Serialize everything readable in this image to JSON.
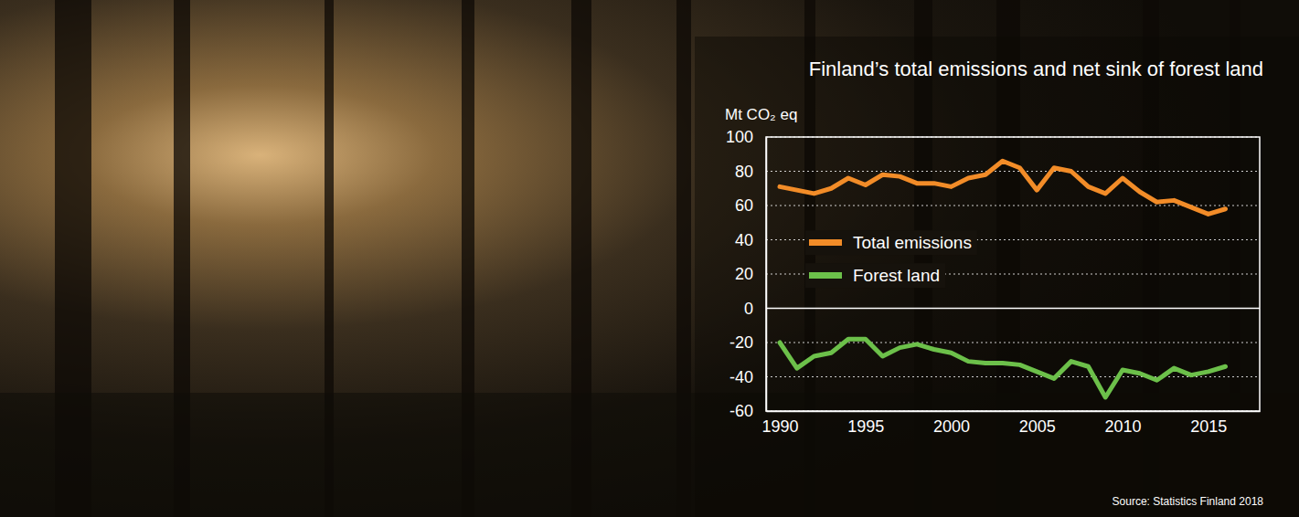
{
  "chart_data": {
    "type": "line",
    "title": "Finland’s total emissions and net sink of forest land",
    "y_label": "Mt CO₂ eq",
    "source": "Source: Statistics Finland 2018",
    "x": [
      1990,
      1991,
      1992,
      1993,
      1994,
      1995,
      1996,
      1997,
      1998,
      1999,
      2000,
      2001,
      2002,
      2003,
      2004,
      2005,
      2006,
      2007,
      2008,
      2009,
      2010,
      2011,
      2012,
      2013,
      2014,
      2015,
      2016
    ],
    "series": [
      {
        "name": "Total emissions",
        "color": "#f28c28",
        "values": [
          71,
          69,
          67,
          70,
          76,
          72,
          78,
          77,
          73,
          73,
          71,
          76,
          78,
          86,
          82,
          69,
          82,
          80,
          71,
          67,
          76,
          68,
          62,
          63,
          59,
          55,
          58
        ]
      },
      {
        "name": "Forest land",
        "color": "#6cc04a",
        "values": [
          -20,
          -35,
          -28,
          -26,
          -18,
          -18,
          -28,
          -23,
          -21,
          -24,
          -26,
          -31,
          -32,
          -32,
          -33,
          -37,
          -41,
          -31,
          -34,
          -52,
          -36,
          -38,
          -42,
          -35,
          -39,
          -37,
          -34
        ]
      }
    ],
    "xlim": [
      1989.2,
      2018
    ],
    "xticks": [
      1990,
      1995,
      2000,
      2005,
      2010,
      2015
    ],
    "ylim": [
      -60,
      100
    ],
    "yticks": [
      -60,
      -40,
      -20,
      0,
      20,
      40,
      60,
      80,
      100
    ],
    "grid": true,
    "legend": "center-left"
  }
}
